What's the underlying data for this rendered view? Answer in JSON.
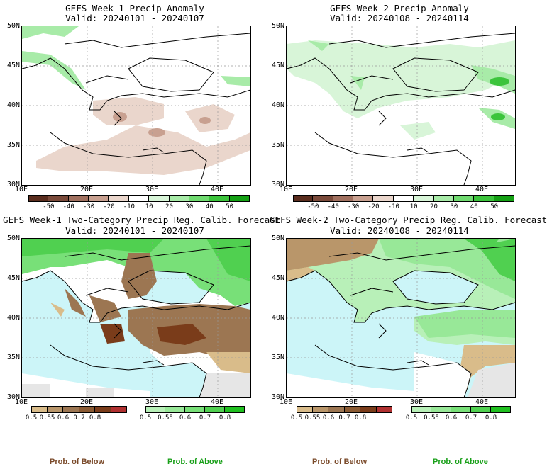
{
  "panels": [
    {
      "title": "GEFS Week-1 Precip Anomaly",
      "valid": "Valid: 20240101 - 20240107"
    },
    {
      "title": "GEFS Week-2 Precip Anomaly",
      "valid": "Valid: 20240108 - 20240114"
    },
    {
      "title": "GEFS Week-1 Two-Category Precip Reg. Calib. Forecast",
      "valid": "Valid: 20240101 - 20240107"
    },
    {
      "title": "GEFS Week-2 Two-Category Precip Reg. Calib. Forecast",
      "valid": "Valid: 20240108 - 20240114"
    }
  ],
  "axes": {
    "lat": [
      "50N",
      "45N",
      "40N",
      "35N",
      "30N"
    ],
    "lon": [
      "10E",
      "20E",
      "30E",
      "40E"
    ]
  },
  "anomaly_colorbar": {
    "labels": [
      "-50",
      "-40",
      "-30",
      "-20",
      "-10",
      "10",
      "20",
      "30",
      "40",
      "50"
    ],
    "colors": [
      "#5a2d1e",
      "#7a4a3a",
      "#a0705f",
      "#c8a090",
      "#ead6cc",
      "#ffffff",
      "#d8f5d8",
      "#a8eba8",
      "#70db70",
      "#3cc43c",
      "#14a014"
    ]
  },
  "below_colorbar": {
    "labels": [
      "0.5",
      "0.55",
      "0.6",
      "0.7",
      "0.8"
    ],
    "colors": [
      "#d9bc8a",
      "#b9966a",
      "#9c7652",
      "#8a5a32",
      "#7a3c1a",
      "#b03030"
    ]
  },
  "above_colorbar": {
    "labels": [
      "0.5",
      "0.55",
      "0.6",
      "0.7",
      "0.8"
    ],
    "colors": [
      "#b8f0b8",
      "#98e898",
      "#78e078",
      "#50d050",
      "#20c020"
    ]
  },
  "legend": {
    "below": "Prob. of Below",
    "above": "Prob. of Above",
    "below_color": "#7a4a2a",
    "above_color": "#1aa01a"
  }
}
